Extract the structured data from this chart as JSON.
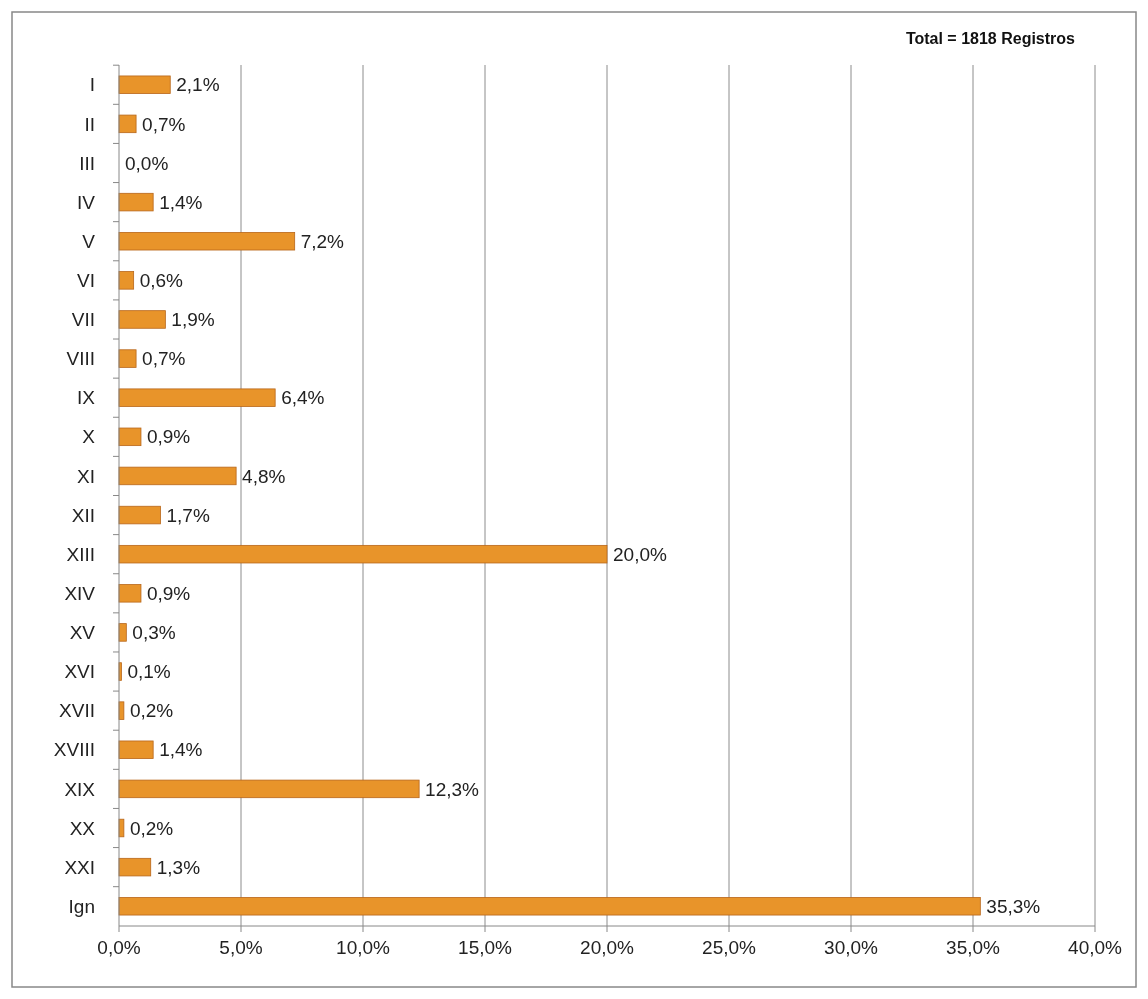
{
  "chart_data": {
    "type": "bar",
    "orientation": "horizontal",
    "annotations": [
      "Total = 1818 Registros"
    ],
    "categories": [
      "I",
      "II",
      "III",
      "IV",
      "V",
      "VI",
      "VII",
      "VIII",
      "IX",
      "X",
      "XI",
      "XII",
      "XIII",
      "XIV",
      "XV",
      "XVI",
      "XVII",
      "XVIII",
      "XIX",
      "XX",
      "XXI",
      "Ign"
    ],
    "values": [
      2.1,
      0.7,
      0.0,
      1.4,
      7.2,
      0.6,
      1.9,
      0.7,
      6.4,
      0.9,
      4.8,
      1.7,
      20.0,
      0.9,
      0.3,
      0.1,
      0.2,
      1.4,
      12.3,
      0.2,
      1.3,
      35.3
    ],
    "value_labels": [
      "2,1%",
      "0,7%",
      "0,0%",
      "1,4%",
      "7,2%",
      "0,6%",
      "1,9%",
      "0,7%",
      "6,4%",
      "0,9%",
      "4,8%",
      "1,7%",
      "20,0%",
      "0,9%",
      "0,3%",
      "0,1%",
      "0,2%",
      "1,4%",
      "12,3%",
      "0,2%",
      "1,3%",
      "35,3%"
    ],
    "color": "#e8942a",
    "xlim": [
      0,
      40
    ],
    "xticks": [
      {
        "value": 0,
        "label": "0,0%"
      },
      {
        "value": 5,
        "label": "5,0%"
      },
      {
        "value": 10,
        "label": "10,0%"
      },
      {
        "value": 15,
        "label": "15,0%"
      },
      {
        "value": 20,
        "label": "20,0%"
      },
      {
        "value": 25,
        "label": "25,0%"
      },
      {
        "value": 30,
        "label": "30,0%"
      },
      {
        "value": 35,
        "label": "35,0%"
      },
      {
        "value": 40,
        "label": "40,0%"
      }
    ],
    "grid": "x"
  }
}
